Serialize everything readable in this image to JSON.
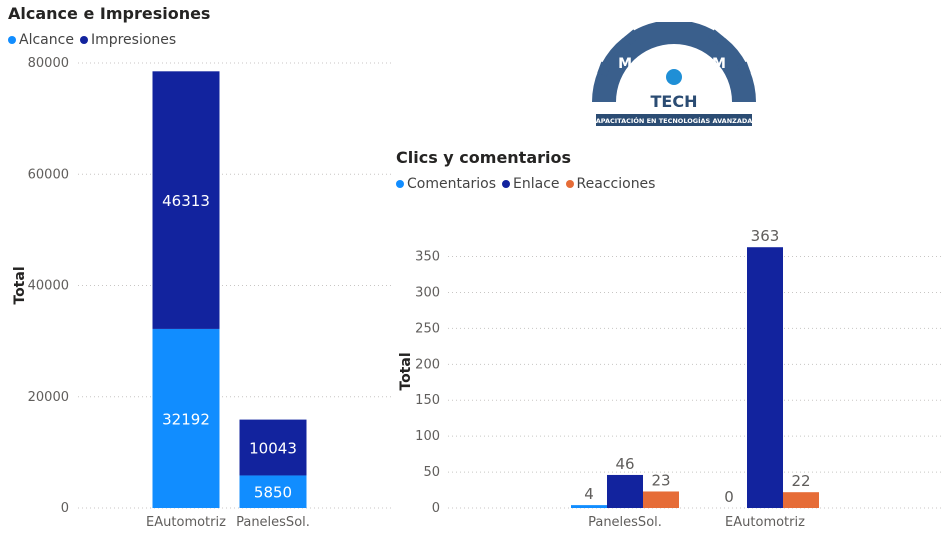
{
  "logo": {
    "name": "MILENIUM",
    "sub": "TECH",
    "tagline": "CAPACITACIÓN EN TECNOLOGÍAS AVANZADAS"
  },
  "chart_data": [
    {
      "type": "bar",
      "stacked": true,
      "title": "Alcance e Impresiones",
      "ylabel": "Total",
      "xlabel": "",
      "ylim": [
        0,
        80000
      ],
      "yticks": [
        0,
        20000,
        40000,
        60000,
        80000
      ],
      "categories": [
        "EAutomotriz",
        "PanelesSol."
      ],
      "series": [
        {
          "name": "Alcance",
          "color": "#118DFF",
          "values": [
            32192,
            5850
          ]
        },
        {
          "name": "Impresiones",
          "color": "#12239E",
          "values": [
            46313,
            10043
          ]
        }
      ],
      "legend": "top-left",
      "grid": true
    },
    {
      "type": "bar",
      "stacked": false,
      "title": "Clics y comentarios",
      "ylabel": "Total",
      "xlabel": "",
      "ylim": [
        0,
        380
      ],
      "yticks": [
        0,
        50,
        100,
        150,
        200,
        250,
        300,
        350
      ],
      "categories": [
        "PanelesSol.",
        "EAutomotriz"
      ],
      "series": [
        {
          "name": "Comentarios",
          "color": "#118DFF",
          "values": [
            4,
            0
          ]
        },
        {
          "name": "Enlace",
          "color": "#12239E",
          "values": [
            46,
            363
          ]
        },
        {
          "name": "Reacciones",
          "color": "#E66C37",
          "values": [
            23,
            22
          ]
        }
      ],
      "legend": "top-left",
      "grid": true
    }
  ]
}
